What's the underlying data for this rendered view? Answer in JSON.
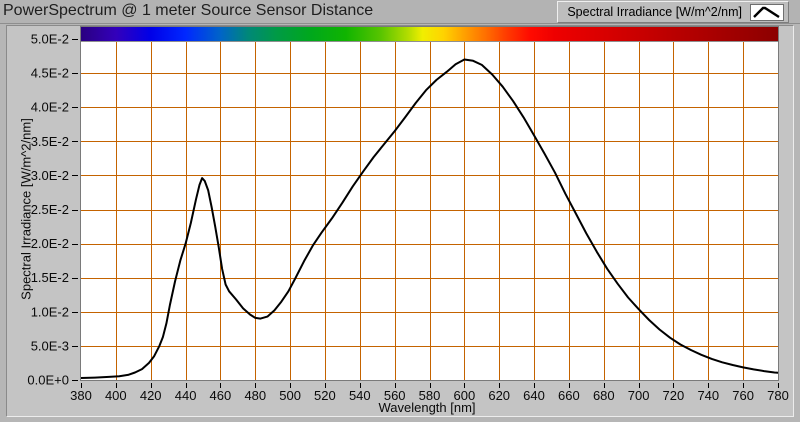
{
  "window": {
    "title": "PowerSpectrum @ 1 meter Source Sensor Distance"
  },
  "legend": {
    "label": "Spectral Irradiance [W/m^2/nm]",
    "icon": "curve-peak-icon"
  },
  "chart_data": {
    "type": "line",
    "title": "PowerSpectrum @ 1 meter Source Sensor Distance",
    "xlabel": "Wavelength [nm]",
    "ylabel": "Spectral Irradiance [W/m^2/nm]",
    "xlim": [
      380,
      780
    ],
    "ylim": [
      0,
      0.05
    ],
    "grid": true,
    "grid_color": "#c46300",
    "line_color": "#000000",
    "legend_position": "top-right",
    "x_ticks": [
      {
        "label": "380",
        "value": 380
      },
      {
        "label": "400",
        "value": 400
      },
      {
        "label": "420",
        "value": 420
      },
      {
        "label": "440",
        "value": 440
      },
      {
        "label": "460",
        "value": 460
      },
      {
        "label": "480",
        "value": 480
      },
      {
        "label": "500",
        "value": 500
      },
      {
        "label": "520",
        "value": 520
      },
      {
        "label": "540",
        "value": 540
      },
      {
        "label": "560",
        "value": 560
      },
      {
        "label": "580",
        "value": 580
      },
      {
        "label": "600",
        "value": 600
      },
      {
        "label": "620",
        "value": 620
      },
      {
        "label": "640",
        "value": 640
      },
      {
        "label": "660",
        "value": 660
      },
      {
        "label": "680",
        "value": 680
      },
      {
        "label": "700",
        "value": 700
      },
      {
        "label": "720",
        "value": 720
      },
      {
        "label": "740",
        "value": 740
      },
      {
        "label": "760",
        "value": 760
      },
      {
        "label": "780",
        "value": 780
      }
    ],
    "y_ticks": [
      {
        "label": "0.0E+0",
        "value": 0
      },
      {
        "label": "5.0E-3",
        "value": 0.005
      },
      {
        "label": "1.0E-2",
        "value": 0.01
      },
      {
        "label": "1.5E-2",
        "value": 0.015
      },
      {
        "label": "2.0E-2",
        "value": 0.02
      },
      {
        "label": "2.5E-2",
        "value": 0.025
      },
      {
        "label": "3.0E-2",
        "value": 0.03
      },
      {
        "label": "3.5E-2",
        "value": 0.035
      },
      {
        "label": "4.0E-2",
        "value": 0.04
      },
      {
        "label": "4.5E-2",
        "value": 0.045
      },
      {
        "label": "5.0E-2",
        "value": 0.05
      }
    ],
    "spectrum_bar": {
      "description": "visible-spectrum color strip along top of plot, 380-780 nm",
      "stops": [
        [
          0.0,
          "#2a0080"
        ],
        [
          0.05,
          "#3300bb"
        ],
        [
          0.1,
          "#0000e8"
        ],
        [
          0.15,
          "#0028ff"
        ],
        [
          0.2,
          "#0064c8"
        ],
        [
          0.24,
          "#008878"
        ],
        [
          0.28,
          "#009a46"
        ],
        [
          0.33,
          "#00a81c"
        ],
        [
          0.38,
          "#10b400"
        ],
        [
          0.43,
          "#58c400"
        ],
        [
          0.47,
          "#b5dd00"
        ],
        [
          0.49,
          "#f0ee00"
        ],
        [
          0.52,
          "#ffd300"
        ],
        [
          0.55,
          "#ffa000"
        ],
        [
          0.58,
          "#ff7000"
        ],
        [
          0.61,
          "#ff3c00"
        ],
        [
          0.645,
          "#ff0a00"
        ],
        [
          0.68,
          "#ee0000"
        ],
        [
          0.75,
          "#d90000"
        ],
        [
          0.85,
          "#ba0000"
        ],
        [
          1.0,
          "#8c0000"
        ]
      ]
    },
    "series": [
      {
        "name": "Spectral Irradiance [W/m^2/nm]",
        "points": [
          [
            380,
            0.0003
          ],
          [
            388,
            0.00035
          ],
          [
            396,
            0.00045
          ],
          [
            402,
            0.00055
          ],
          [
            407,
            0.00075
          ],
          [
            411,
            0.0011
          ],
          [
            415,
            0.0016
          ],
          [
            419,
            0.0025
          ],
          [
            422,
            0.0035
          ],
          [
            425,
            0.005
          ],
          [
            427,
            0.0063
          ],
          [
            429,
            0.0083
          ],
          [
            431,
            0.011
          ],
          [
            434,
            0.0145
          ],
          [
            437,
            0.0175
          ],
          [
            440,
            0.02
          ],
          [
            443,
            0.023
          ],
          [
            446,
            0.0265
          ],
          [
            448,
            0.0286
          ],
          [
            449.5,
            0.0296
          ],
          [
            451,
            0.0292
          ],
          [
            453,
            0.0278
          ],
          [
            455,
            0.0253
          ],
          [
            457,
            0.0225
          ],
          [
            459,
            0.0195
          ],
          [
            461,
            0.0163
          ],
          [
            463,
            0.014
          ],
          [
            465,
            0.013
          ],
          [
            469,
            0.0118
          ],
          [
            473,
            0.0105
          ],
          [
            477,
            0.0096
          ],
          [
            480,
            0.0091
          ],
          [
            483,
            0.009
          ],
          [
            487,
            0.0093
          ],
          [
            491,
            0.0102
          ],
          [
            495,
            0.0115
          ],
          [
            499,
            0.013
          ],
          [
            503,
            0.0149
          ],
          [
            508,
            0.0174
          ],
          [
            513,
            0.0197
          ],
          [
            518,
            0.0216
          ],
          [
            524,
            0.0237
          ],
          [
            530,
            0.026
          ],
          [
            536,
            0.0284
          ],
          [
            542,
            0.0306
          ],
          [
            548,
            0.0327
          ],
          [
            554,
            0.0346
          ],
          [
            560,
            0.0365
          ],
          [
            566,
            0.0385
          ],
          [
            572,
            0.0406
          ],
          [
            578,
            0.0425
          ],
          [
            584,
            0.044
          ],
          [
            590,
            0.0452
          ],
          [
            595,
            0.0463
          ],
          [
            600,
            0.047
          ],
          [
            605,
            0.0468
          ],
          [
            610,
            0.0462
          ],
          [
            616,
            0.0448
          ],
          [
            622,
            0.043
          ],
          [
            628,
            0.0409
          ],
          [
            634,
            0.0385
          ],
          [
            640,
            0.0359
          ],
          [
            646,
            0.0332
          ],
          [
            652,
            0.0304
          ],
          [
            658,
            0.0273
          ],
          [
            664,
            0.0244
          ],
          [
            670,
            0.0215
          ],
          [
            676,
            0.0188
          ],
          [
            682,
            0.0163
          ],
          [
            688,
            0.0141
          ],
          [
            694,
            0.0121
          ],
          [
            700,
            0.0104
          ],
          [
            706,
            0.0088
          ],
          [
            712,
            0.0074
          ],
          [
            718,
            0.0062
          ],
          [
            724,
            0.0052
          ],
          [
            730,
            0.0044
          ],
          [
            736,
            0.0037
          ],
          [
            742,
            0.0031
          ],
          [
            748,
            0.0026
          ],
          [
            754,
            0.0022
          ],
          [
            760,
            0.00185
          ],
          [
            766,
            0.00155
          ],
          [
            772,
            0.0013
          ],
          [
            778,
            0.0011
          ],
          [
            780,
            0.00105
          ]
        ]
      }
    ]
  }
}
